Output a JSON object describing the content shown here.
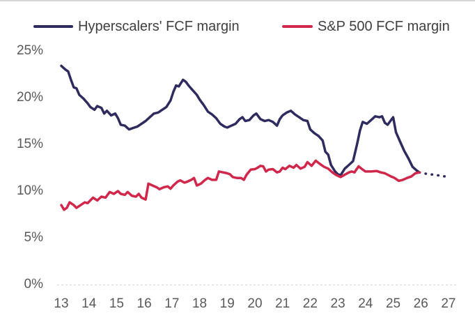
{
  "legend": {
    "items": [
      {
        "label": "Hyperscalers' FCF margin",
        "color": "#2f2b5e"
      },
      {
        "label": "S&P 500 FCF margin",
        "color": "#d0274b"
      }
    ]
  },
  "axes": {
    "y_ticks": [
      {
        "label": "25%",
        "value": 25
      },
      {
        "label": "20%",
        "value": 20
      },
      {
        "label": "15%",
        "value": 15
      },
      {
        "label": "10%",
        "value": 10
      },
      {
        "label": "5%",
        "value": 5
      },
      {
        "label": "0%",
        "value": 0
      }
    ],
    "x_ticks": [
      {
        "label": "13",
        "value": 13
      },
      {
        "label": "14",
        "value": 14
      },
      {
        "label": "15",
        "value": 15
      },
      {
        "label": "16",
        "value": 16
      },
      {
        "label": "17",
        "value": 17
      },
      {
        "label": "18",
        "value": 18
      },
      {
        "label": "19",
        "value": 19
      },
      {
        "label": "20",
        "value": 20
      },
      {
        "label": "21",
        "value": 21
      },
      {
        "label": "22",
        "value": 22
      },
      {
        "label": "23",
        "value": 23
      },
      {
        "label": "24",
        "value": 24
      },
      {
        "label": "25",
        "value": 25
      },
      {
        "label": "26",
        "value": 26
      },
      {
        "label": "27",
        "value": 27
      }
    ]
  },
  "chart_data": {
    "type": "line",
    "title": "",
    "xlabel": "",
    "ylabel": "",
    "x_range": [
      13,
      27
    ],
    "y_range": [
      0,
      25
    ],
    "y_unit": "%",
    "grid": false,
    "baseline": {
      "value": 0,
      "style": "dashed",
      "color": "#d9d9d9"
    },
    "legend_position": "top",
    "series": [
      {
        "name": "Hyperscalers' FCF margin",
        "color": "#2f2b5e",
        "style": "solid",
        "points": [
          [
            13.0,
            23.4
          ],
          [
            13.15,
            23.0
          ],
          [
            13.25,
            22.8
          ],
          [
            13.35,
            21.9
          ],
          [
            13.45,
            21.1
          ],
          [
            13.55,
            21.0
          ],
          [
            13.65,
            20.3
          ],
          [
            13.8,
            19.9
          ],
          [
            13.95,
            19.4
          ],
          [
            14.05,
            19.0
          ],
          [
            14.2,
            18.7
          ],
          [
            14.3,
            19.1
          ],
          [
            14.45,
            18.9
          ],
          [
            14.55,
            18.3
          ],
          [
            14.65,
            18.6
          ],
          [
            14.8,
            18.1
          ],
          [
            14.95,
            18.3
          ],
          [
            15.05,
            17.8
          ],
          [
            15.15,
            17.1
          ],
          [
            15.3,
            17.0
          ],
          [
            15.45,
            16.6
          ],
          [
            15.6,
            16.75
          ],
          [
            15.75,
            16.9
          ],
          [
            15.9,
            17.2
          ],
          [
            16.05,
            17.5
          ],
          [
            16.2,
            17.9
          ],
          [
            16.35,
            18.3
          ],
          [
            16.5,
            18.4
          ],
          [
            16.65,
            18.7
          ],
          [
            16.8,
            19.0
          ],
          [
            16.95,
            19.7
          ],
          [
            17.05,
            20.6
          ],
          [
            17.15,
            21.3
          ],
          [
            17.25,
            21.2
          ],
          [
            17.4,
            21.9
          ],
          [
            17.5,
            21.7
          ],
          [
            17.6,
            21.3
          ],
          [
            17.75,
            20.8
          ],
          [
            17.9,
            20.3
          ],
          [
            18.0,
            19.8
          ],
          [
            18.15,
            19.2
          ],
          [
            18.3,
            18.5
          ],
          [
            18.45,
            18.2
          ],
          [
            18.6,
            17.8
          ],
          [
            18.75,
            17.2
          ],
          [
            18.9,
            16.9
          ],
          [
            19.0,
            16.8
          ],
          [
            19.15,
            17.0
          ],
          [
            19.3,
            17.2
          ],
          [
            19.45,
            17.7
          ],
          [
            19.55,
            17.9
          ],
          [
            19.65,
            17.5
          ],
          [
            19.8,
            17.6
          ],
          [
            19.95,
            18.1
          ],
          [
            20.05,
            18.3
          ],
          [
            20.2,
            17.7
          ],
          [
            20.35,
            17.5
          ],
          [
            20.5,
            17.6
          ],
          [
            20.65,
            17.4
          ],
          [
            20.8,
            17.0
          ],
          [
            20.9,
            17.7
          ],
          [
            21.0,
            18.1
          ],
          [
            21.15,
            18.4
          ],
          [
            21.3,
            18.6
          ],
          [
            21.45,
            18.2
          ],
          [
            21.6,
            17.9
          ],
          [
            21.75,
            17.6
          ],
          [
            21.9,
            17.5
          ],
          [
            22.0,
            16.6
          ],
          [
            22.15,
            16.2
          ],
          [
            22.3,
            15.9
          ],
          [
            22.45,
            15.4
          ],
          [
            22.55,
            14.2
          ],
          [
            22.65,
            13.9
          ],
          [
            22.75,
            12.8
          ],
          [
            22.9,
            12.1
          ],
          [
            23.0,
            11.8
          ],
          [
            23.1,
            11.7
          ],
          [
            23.25,
            12.4
          ],
          [
            23.4,
            12.8
          ],
          [
            23.55,
            13.2
          ],
          [
            23.7,
            15.1
          ],
          [
            23.8,
            16.5
          ],
          [
            23.9,
            17.4
          ],
          [
            24.05,
            17.2
          ],
          [
            24.2,
            17.6
          ],
          [
            24.35,
            18.0
          ],
          [
            24.5,
            17.9
          ],
          [
            24.6,
            18.0
          ],
          [
            24.7,
            17.3
          ],
          [
            24.8,
            17.1
          ],
          [
            24.9,
            17.5
          ],
          [
            25.0,
            17.9
          ],
          [
            25.1,
            16.3
          ],
          [
            25.25,
            15.3
          ],
          [
            25.4,
            14.3
          ],
          [
            25.55,
            13.5
          ],
          [
            25.7,
            12.6
          ],
          [
            25.85,
            12.2
          ],
          [
            25.95,
            12.0
          ]
        ]
      },
      {
        "name": "Hyperscalers' FCF margin (dotted extension)",
        "color": "#2f2b5e",
        "style": "dotted",
        "points": [
          [
            25.95,
            12.0
          ],
          [
            26.2,
            11.85
          ],
          [
            26.45,
            11.75
          ],
          [
            26.7,
            11.65
          ],
          [
            26.9,
            11.55
          ]
        ]
      },
      {
        "name": "S&P 500 FCF margin",
        "color": "#d0274b",
        "style": "solid",
        "points": [
          [
            13.0,
            8.5
          ],
          [
            13.1,
            8.0
          ],
          [
            13.2,
            8.2
          ],
          [
            13.3,
            8.8
          ],
          [
            13.45,
            8.5
          ],
          [
            13.55,
            8.2
          ],
          [
            13.7,
            8.5
          ],
          [
            13.85,
            8.8
          ],
          [
            13.95,
            8.7
          ],
          [
            14.05,
            9.0
          ],
          [
            14.15,
            9.3
          ],
          [
            14.3,
            9.0
          ],
          [
            14.45,
            9.4
          ],
          [
            14.6,
            9.3
          ],
          [
            14.75,
            9.9
          ],
          [
            14.9,
            9.7
          ],
          [
            15.05,
            10.0
          ],
          [
            15.15,
            9.7
          ],
          [
            15.3,
            9.6
          ],
          [
            15.4,
            9.9
          ],
          [
            15.55,
            9.5
          ],
          [
            15.7,
            9.4
          ],
          [
            15.8,
            9.7
          ],
          [
            15.9,
            9.3
          ],
          [
            16.05,
            9.1
          ],
          [
            16.15,
            10.8
          ],
          [
            16.3,
            10.6
          ],
          [
            16.45,
            10.4
          ],
          [
            16.55,
            10.2
          ],
          [
            16.7,
            10.4
          ],
          [
            16.85,
            10.5
          ],
          [
            16.95,
            10.25
          ],
          [
            17.05,
            10.6
          ],
          [
            17.2,
            11.0
          ],
          [
            17.3,
            11.15
          ],
          [
            17.45,
            10.9
          ],
          [
            17.55,
            11.0
          ],
          [
            17.7,
            11.2
          ],
          [
            17.8,
            11.4
          ],
          [
            17.9,
            10.6
          ],
          [
            18.05,
            10.8
          ],
          [
            18.2,
            11.2
          ],
          [
            18.3,
            11.4
          ],
          [
            18.45,
            11.2
          ],
          [
            18.6,
            11.2
          ],
          [
            18.7,
            12.1
          ],
          [
            18.85,
            12.0
          ],
          [
            19.0,
            11.9
          ],
          [
            19.1,
            11.8
          ],
          [
            19.2,
            11.5
          ],
          [
            19.35,
            11.4
          ],
          [
            19.5,
            11.4
          ],
          [
            19.6,
            11.2
          ],
          [
            19.7,
            11.75
          ],
          [
            19.85,
            12.3
          ],
          [
            20.0,
            12.35
          ],
          [
            20.1,
            12.5
          ],
          [
            20.2,
            12.7
          ],
          [
            20.3,
            12.65
          ],
          [
            20.4,
            12.1
          ],
          [
            20.5,
            12.3
          ],
          [
            20.65,
            12.35
          ],
          [
            20.8,
            12.0
          ],
          [
            20.9,
            12.1
          ],
          [
            21.0,
            12.5
          ],
          [
            21.1,
            12.35
          ],
          [
            21.25,
            12.7
          ],
          [
            21.4,
            12.5
          ],
          [
            21.5,
            12.8
          ],
          [
            21.65,
            12.4
          ],
          [
            21.8,
            12.6
          ],
          [
            21.9,
            13.1
          ],
          [
            22.05,
            12.7
          ],
          [
            22.2,
            13.25
          ],
          [
            22.35,
            12.9
          ],
          [
            22.5,
            12.6
          ],
          [
            22.65,
            12.4
          ],
          [
            22.8,
            12.0
          ],
          [
            22.95,
            11.7
          ],
          [
            23.1,
            11.5
          ],
          [
            23.25,
            11.75
          ],
          [
            23.4,
            12.0
          ],
          [
            23.5,
            12.1
          ],
          [
            23.6,
            12.0
          ],
          [
            23.75,
            12.65
          ],
          [
            23.9,
            12.3
          ],
          [
            24.0,
            12.1
          ],
          [
            24.2,
            12.1
          ],
          [
            24.4,
            12.15
          ],
          [
            24.55,
            12.0
          ],
          [
            24.7,
            11.9
          ],
          [
            24.9,
            11.6
          ],
          [
            25.05,
            11.4
          ],
          [
            25.2,
            11.1
          ],
          [
            25.35,
            11.2
          ],
          [
            25.5,
            11.4
          ],
          [
            25.65,
            11.55
          ],
          [
            25.8,
            11.9
          ],
          [
            25.95,
            12.0
          ]
        ]
      }
    ]
  }
}
